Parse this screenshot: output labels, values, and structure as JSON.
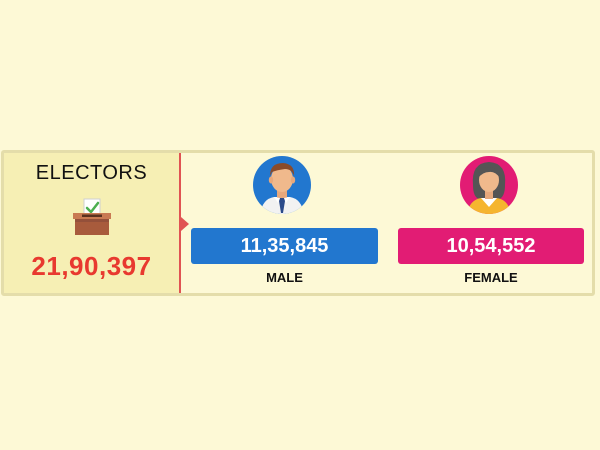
{
  "electors": {
    "title": "ELECTORS",
    "icon": "ballot-box-icon",
    "total": "21,90,397",
    "total_color": "#e8392f"
  },
  "male": {
    "icon": "male-avatar-icon",
    "count": "11,35,845",
    "label": "MALE",
    "color": "#2277cf"
  },
  "female": {
    "icon": "female-avatar-icon",
    "count": "10,54,552",
    "label": "FEMALE",
    "color": "#e21c74"
  }
}
